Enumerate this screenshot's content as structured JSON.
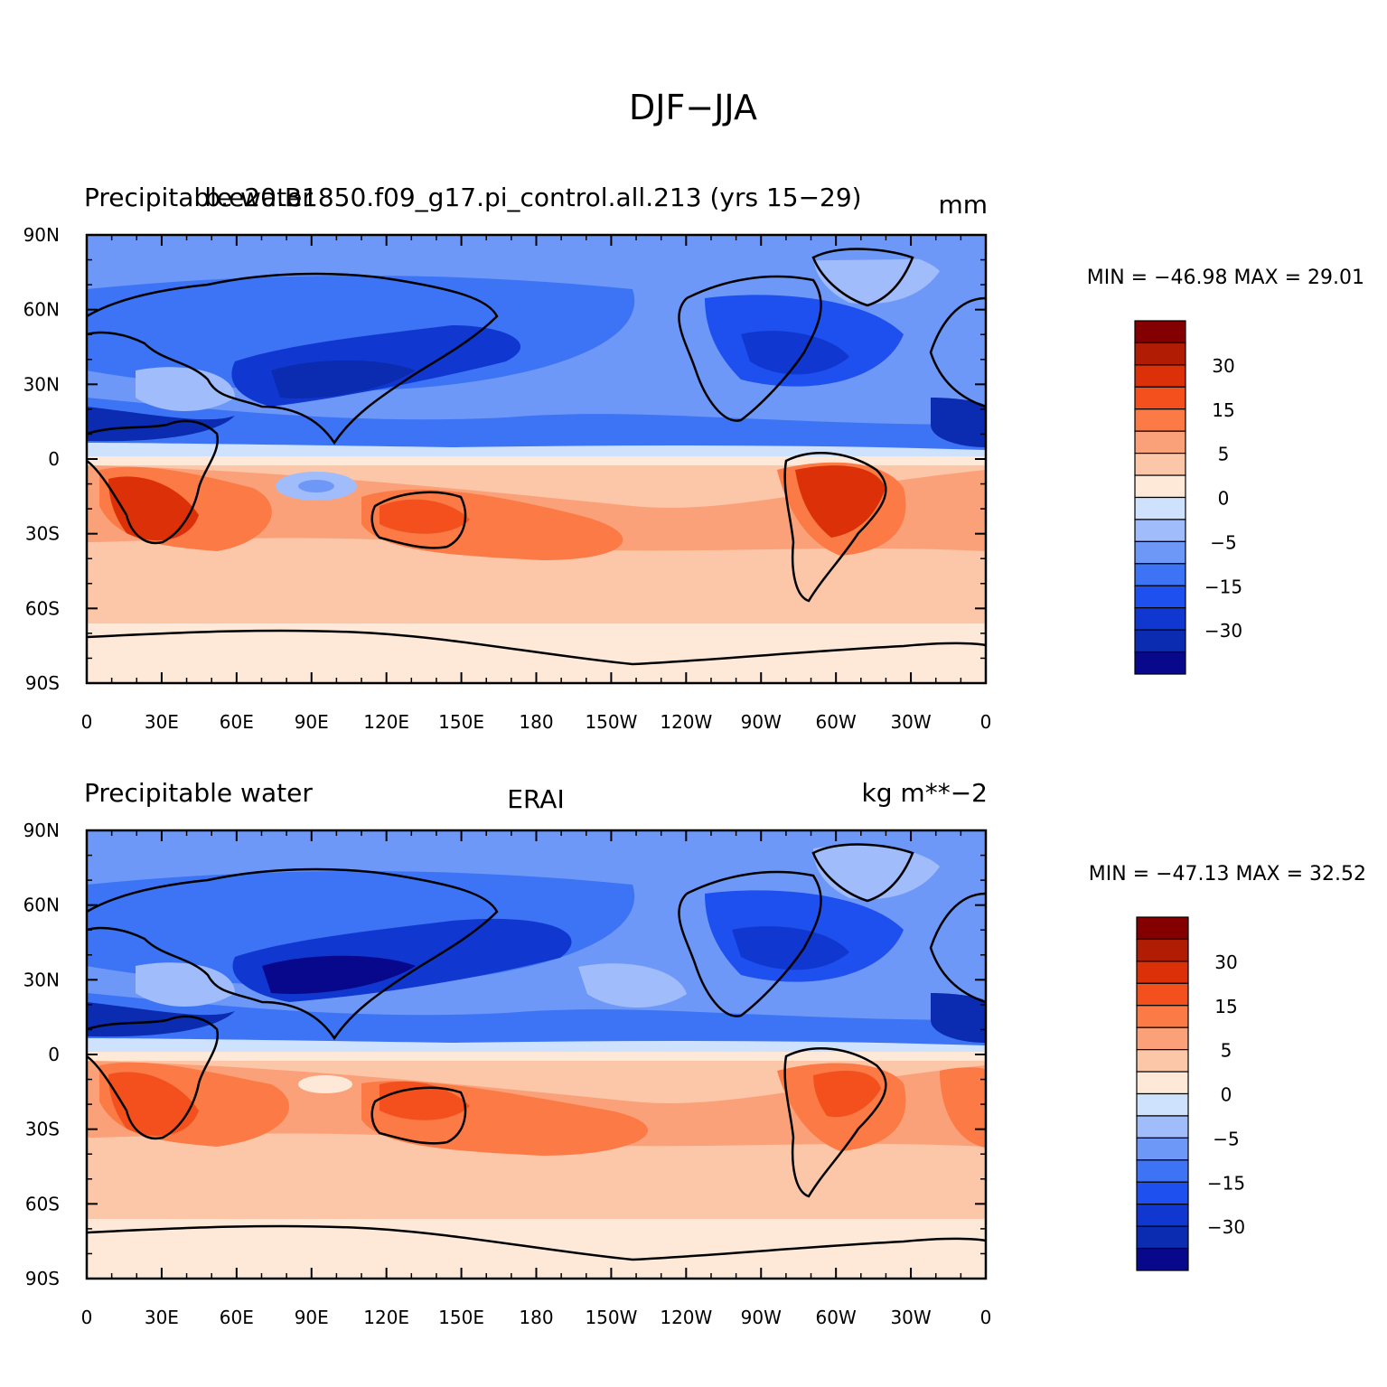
{
  "title": "DJF−JJA",
  "colors": {
    "levels": [
      "#08088c",
      "#0b2bb0",
      "#1038d0",
      "#1e50f0",
      "#3c74f5",
      "#6e98f8",
      "#a0bcfa",
      "#cfe2fd",
      "#fee8d8",
      "#fcc6a8",
      "#fba179",
      "#fb7a45",
      "#f4501e",
      "#dc3008",
      "#b01c04",
      "#840000"
    ],
    "coast": "#000000"
  },
  "panels": [
    {
      "left_label": "Precipitable water",
      "center_label": "b.e20.B1850.f09_g17.pi_control.all.213 (yrs 15−29)",
      "right_label": "mm",
      "min_max": "MIN = −46.98 MAX =   29.01",
      "colorbar_labels": [
        "30",
        "15",
        "5",
        "0",
        "−5",
        "−15",
        "−30"
      ]
    },
    {
      "left_label": "Precipitable water",
      "center_label": "ERAI",
      "right_label": "kg m**−2",
      "min_max": "MIN = −47.13 MAX =   32.52",
      "colorbar_labels": [
        "30",
        "15",
        "5",
        "0",
        "−5",
        "−15",
        "−30"
      ]
    }
  ],
  "axes": {
    "lat_ticks": [
      "90N",
      "60N",
      "30N",
      "0",
      "30S",
      "60S",
      "90S"
    ],
    "lon_ticks": [
      "0",
      "30E",
      "60E",
      "90E",
      "120E",
      "150E",
      "180",
      "150W",
      "120W",
      "90W",
      "60W",
      "30W",
      "0"
    ]
  }
}
